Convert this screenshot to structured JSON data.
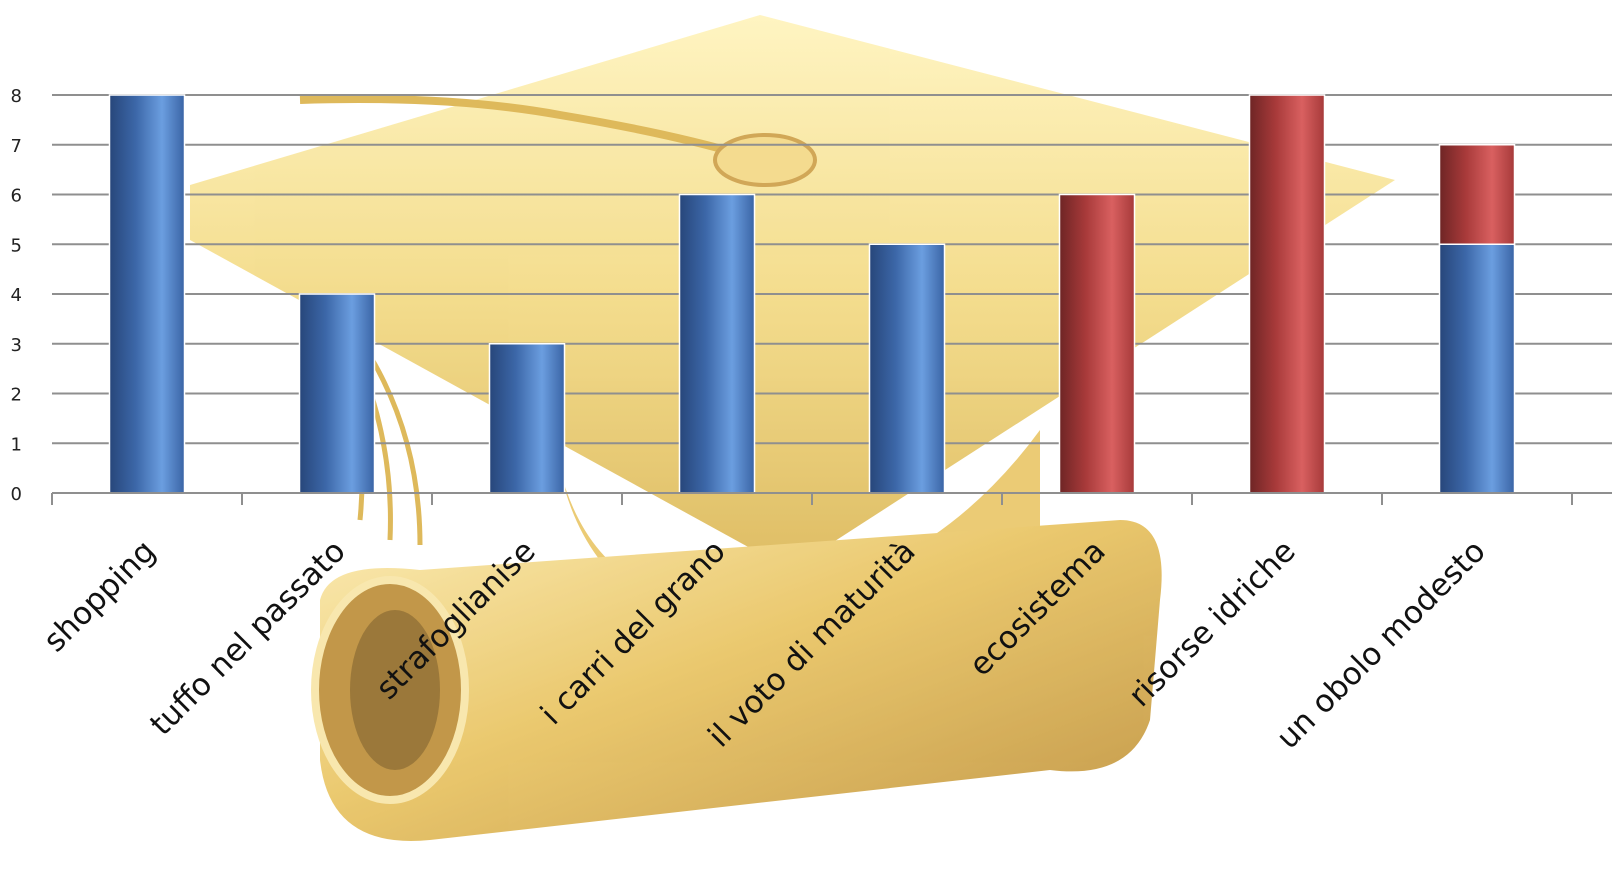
{
  "chart_data": {
    "type": "bar",
    "stacked": true,
    "categories": [
      "shopping",
      "tuffo nel passato",
      "strafoglianise",
      "i carri del grano",
      "il voto di maturità",
      "ecosistema",
      "risorse idriche",
      "un obolo modesto"
    ],
    "series": [
      {
        "values": [
          8,
          4,
          3,
          6,
          5,
          0,
          0,
          5
        ]
      },
      {
        "values": [
          0,
          0,
          0,
          0,
          0,
          6,
          8,
          2
        ]
      }
    ],
    "ylim": [
      0,
      8
    ],
    "yticks": [
      0,
      1,
      2,
      3,
      4,
      5,
      6,
      7,
      8
    ],
    "grid": true,
    "legend": "none",
    "series_colors": [
      "#4a7cc4",
      "#c84b4b"
    ],
    "background": "gold graduation cap and diploma scroll illustration"
  }
}
